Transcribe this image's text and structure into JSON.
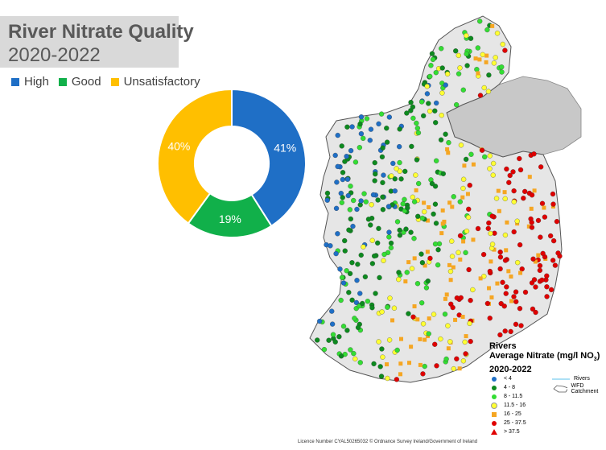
{
  "chart_data": {
    "type": "pie",
    "title": "River Nitrate Quality",
    "subtitle": "2020-2022",
    "categories": [
      "High",
      "Good",
      "Unsatisfactory"
    ],
    "values": [
      41,
      19,
      40
    ],
    "labels": [
      "41%",
      "19%",
      "40%"
    ],
    "colors": [
      "#1f6fc6",
      "#11b04a",
      "#ffbf00"
    ],
    "legend_position": "top"
  },
  "map": {
    "legend_title": "Rivers",
    "legend_subtitle_prefix": "Average Nitrate (mg/l NO",
    "legend_subtitle_sub": "3",
    "legend_subtitle_suffix": ")",
    "legend_period": "2020-2022",
    "classes": [
      {
        "label": "< 4",
        "color": "#1f6fc6",
        "shape": "circle"
      },
      {
        "label": "4 - 8",
        "color": "#0d8a1f",
        "shape": "circle"
      },
      {
        "label": "8 - 11.5",
        "color": "#33dd33",
        "shape": "circle"
      },
      {
        "label": "11.5 - 16",
        "color": "#ffff33",
        "shape": "circle"
      },
      {
        "label": "16 - 25",
        "color": "#f5a623",
        "shape": "square"
      },
      {
        "label": "25 - 37.5",
        "color": "#e00000",
        "shape": "circle"
      },
      {
        "label": "> 37.5",
        "color": "#e00000",
        "shape": "triangle"
      }
    ],
    "rivers_label": "Rivers",
    "catchment_label": "WFD Catchment",
    "footer": "Licence Number CYAL50265032 © Ordnance Survey Ireland/Government of Ireland"
  }
}
